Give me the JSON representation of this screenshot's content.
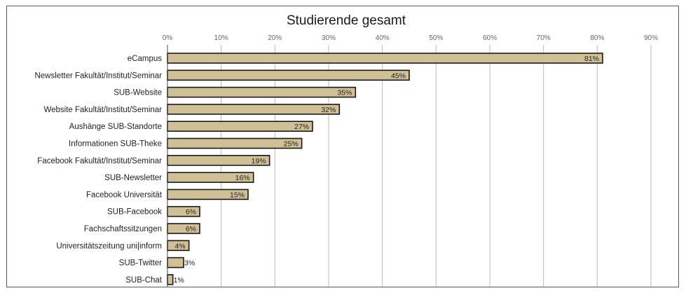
{
  "chart_data": {
    "type": "bar",
    "orientation": "horizontal",
    "title": "Studierende gesamt",
    "xlabel": "",
    "ylabel": "",
    "xlim": [
      0,
      90
    ],
    "x_ticks": [
      "0%",
      "10%",
      "20%",
      "30%",
      "40%",
      "50%",
      "60%",
      "70%",
      "80%",
      "90%"
    ],
    "grid": true,
    "bar_color": "#cfc096",
    "bar_border_color": "#1a1a1a",
    "categories": [
      "eCampus",
      "Newsletter Fakultät/Institut/Seminar",
      "SUB-Website",
      "Website Fakultät/Institut/Seminar",
      "Aushänge SUB-Standorte",
      "Informationen SUB-Theke",
      "Facebook Fakultät/Institut/Seminar",
      "SUB-Newsletter",
      "Facebook Universität",
      "SUB-Facebook",
      "Fachschaftssitzungen",
      "Universitätszeitung uni|inform",
      "SUB-Twitter",
      "SUB-Chat"
    ],
    "values": [
      81,
      45,
      35,
      32,
      27,
      25,
      19,
      16,
      15,
      6,
      6,
      4,
      3,
      1
    ],
    "value_labels": [
      "81%",
      "45%",
      "35%",
      "32%",
      "27%",
      "25%",
      "19%",
      "16%",
      "15%",
      "6%",
      "6%",
      "4%",
      "3%",
      "1%"
    ]
  }
}
